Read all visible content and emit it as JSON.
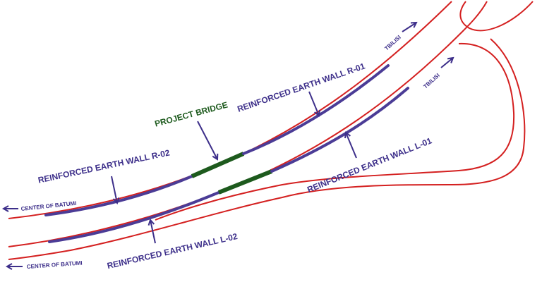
{
  "labels": {
    "project_bridge": "PROJECT BRIDGE",
    "wall_r01": "REINFORCED EARTH WALL R-01",
    "wall_r02": "REINFORCED EARTH WALL R-02",
    "wall_l01": "REINFORCED EARTH WALL L-01",
    "wall_l02": "REINFORCED EARTH WALL L-02",
    "batumi_upper": "CENTER OF BATUMI",
    "batumi_lower": "CENTER OF BATUMI",
    "tbilisi_upper": "TBILISI",
    "tbilisi_lower": "TBILISI"
  }
}
